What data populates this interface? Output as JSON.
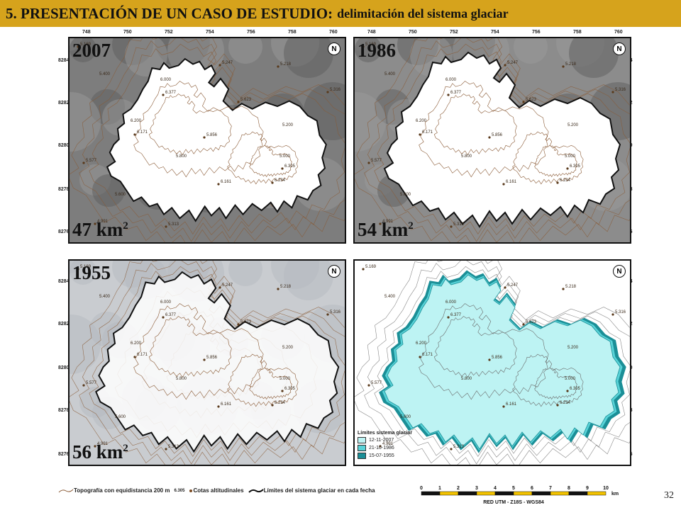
{
  "slide": {
    "title_main": "5. PRESENTACIÓN DE UN CASO DE ESTUDIO:",
    "title_sub": "delimitación del sistema glaciar",
    "page_number": "32"
  },
  "axes": {
    "x_ticks": [
      "748",
      "750",
      "752",
      "754",
      "756",
      "758",
      "760"
    ],
    "y_ticks": [
      "8284",
      "8282",
      "8280",
      "8278",
      "8276"
    ]
  },
  "panels": [
    {
      "year": "2007",
      "area": "47 km",
      "area_exp": "2",
      "north": "N"
    },
    {
      "year": "1986",
      "area": "54 km",
      "area_exp": "2",
      "north": "N"
    },
    {
      "year": "1955",
      "area": "56 km",
      "area_exp": "2",
      "north": "N"
    },
    {
      "year": "",
      "area": "",
      "area_exp": "",
      "north": "N"
    }
  ],
  "summits": [
    "6.377",
    "6.171",
    "5.856",
    "6.305",
    "6.234",
    "6.161",
    "5.623",
    "5.218",
    "5.316",
    "5.169",
    "5.247",
    "5.577",
    "5.313",
    "4.991"
  ],
  "contours": [
    "6.000",
    "6.200",
    "5.800",
    "5.600",
    "5.400",
    "5.200",
    "5.000"
  ],
  "map_legend": {
    "title": "Límites sistema glaciar",
    "items": [
      {
        "label": "12-11-2007",
        "color": "#bdf3f3"
      },
      {
        "label": "21-10-1986",
        "color": "#59d3d8"
      },
      {
        "label": "15-07-1955",
        "color": "#1b8f97"
      }
    ]
  },
  "bottom_legend": {
    "topo": "Topografía con equidistancia 200 m",
    "summit_sample": "6.305",
    "cotas": "Cotas altitudinales",
    "limits": "Límites del sistema glaciar en cada fecha"
  },
  "scale_bar": {
    "labels": [
      "0",
      "1",
      "2",
      "3",
      "4",
      "5",
      "6",
      "7",
      "8",
      "9",
      "10"
    ],
    "unit": "km",
    "grid": "RED UTM - Z18S - WGS84"
  }
}
